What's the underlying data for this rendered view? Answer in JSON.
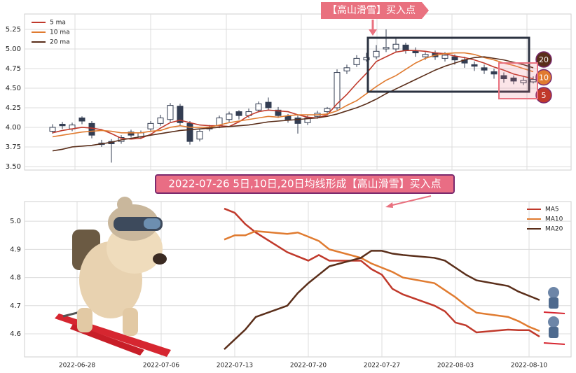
{
  "chart_data": [
    {
      "type": "candlestick",
      "open": [
        3.95,
        4.04,
        3.98,
        4.12,
        4.05,
        3.78,
        3.82,
        3.82,
        3.94,
        3.88,
        3.98,
        4.05,
        4.1,
        4.27,
        4.05,
        3.85,
        4.0,
        4.02,
        4.1,
        4.2,
        4.15,
        4.22,
        4.32,
        4.22,
        4.14,
        4.12,
        4.06,
        4.14,
        4.2,
        4.25,
        4.72,
        4.8,
        4.86,
        4.9,
        5.0,
        5.0,
        5.05,
        4.97,
        4.9,
        4.95,
        4.88,
        4.9,
        4.86,
        4.8,
        4.76,
        4.71,
        4.66,
        4.63,
        4.57,
        4.58
      ],
      "high": [
        4.04,
        4.07,
        4.06,
        4.14,
        4.08,
        3.84,
        3.85,
        3.9,
        3.97,
        3.96,
        4.08,
        4.16,
        4.31,
        4.3,
        4.08,
        3.98,
        4.03,
        4.15,
        4.2,
        4.22,
        4.24,
        4.33,
        4.38,
        4.26,
        4.17,
        4.15,
        4.15,
        4.21,
        4.26,
        4.74,
        4.8,
        4.92,
        4.95,
        5.05,
        5.25,
        5.14,
        5.08,
        5.02,
        4.96,
        4.98,
        4.96,
        4.93,
        4.9,
        4.84,
        4.8,
        4.75,
        4.7,
        4.66,
        4.64,
        4.65
      ],
      "low": [
        3.92,
        3.98,
        3.95,
        4.04,
        3.86,
        3.75,
        3.55,
        3.79,
        3.87,
        3.85,
        3.95,
        4.02,
        4.07,
        4.02,
        3.78,
        3.82,
        3.95,
        3.99,
        4.07,
        4.1,
        4.12,
        4.19,
        4.22,
        4.12,
        4.06,
        3.92,
        4.03,
        4.11,
        4.17,
        4.22,
        4.68,
        4.77,
        4.84,
        4.87,
        4.96,
        4.96,
        4.94,
        4.9,
        4.86,
        4.86,
        4.84,
        4.8,
        4.76,
        4.72,
        4.68,
        4.62,
        4.57,
        4.55,
        4.54,
        4.56
      ],
      "close": [
        4.0,
        4.02,
        4.03,
        4.08,
        3.9,
        3.8,
        3.79,
        3.87,
        3.9,
        3.93,
        4.05,
        4.12,
        4.28,
        4.06,
        3.82,
        3.95,
        3.98,
        4.12,
        4.17,
        4.15,
        4.2,
        4.3,
        4.25,
        4.15,
        4.1,
        4.05,
        4.12,
        4.18,
        4.24,
        4.7,
        4.76,
        4.88,
        4.89,
        4.97,
        5.02,
        5.06,
        4.98,
        4.95,
        4.93,
        4.9,
        4.92,
        4.86,
        4.82,
        4.78,
        4.73,
        4.68,
        4.62,
        4.59,
        4.6,
        4.61
      ],
      "series": [
        {
          "name": "5 ma",
          "color": "#c0392b",
          "values": [
            3.93,
            3.96,
            3.98,
            4.0,
            3.99,
            3.97,
            3.92,
            3.86,
            3.85,
            3.86,
            3.91,
            3.99,
            4.06,
            4.09,
            4.06,
            4.03,
            4.02,
            4.02,
            4.01,
            4.07,
            4.15,
            4.2,
            4.22,
            4.21,
            4.2,
            4.16,
            4.13,
            4.12,
            4.16,
            4.3,
            4.42,
            4.56,
            4.69,
            4.84,
            4.9,
            4.96,
            4.98,
            4.98,
            4.97,
            4.95,
            4.94,
            4.91,
            4.89,
            4.86,
            4.82,
            4.77,
            4.73,
            4.68,
            4.65,
            4.62
          ]
        },
        {
          "name": "10 ma",
          "color": "#e07b30",
          "values": [
            3.88,
            3.9,
            3.92,
            3.94,
            3.95,
            3.96,
            3.95,
            3.93,
            3.93,
            3.93,
            3.95,
            3.96,
            4.0,
            4.02,
            4.0,
            4.0,
            4.0,
            4.03,
            4.06,
            4.08,
            4.1,
            4.12,
            4.14,
            4.13,
            4.15,
            4.16,
            4.16,
            4.16,
            4.17,
            4.21,
            4.28,
            4.34,
            4.43,
            4.52,
            4.6,
            4.66,
            4.74,
            4.82,
            4.88,
            4.92,
            4.94,
            4.95,
            4.95,
            4.93,
            4.89,
            4.86,
            4.82,
            4.79,
            4.75,
            4.71
          ]
        },
        {
          "name": "20 ma",
          "color": "#5a2e1a",
          "values": [
            3.7,
            3.72,
            3.75,
            3.76,
            3.77,
            3.79,
            3.81,
            3.84,
            3.86,
            3.88,
            3.9,
            3.92,
            3.94,
            3.96,
            3.97,
            3.98,
            3.99,
            4.0,
            4.01,
            4.02,
            4.03,
            4.05,
            4.07,
            4.08,
            4.09,
            4.1,
            4.11,
            4.12,
            4.14,
            4.17,
            4.21,
            4.25,
            4.3,
            4.36,
            4.43,
            4.49,
            4.55,
            4.61,
            4.67,
            4.73,
            4.78,
            4.82,
            4.86,
            4.89,
            4.9,
            4.88,
            4.86,
            4.83,
            4.8,
            4.76
          ]
        }
      ],
      "up_color": "#ffffff",
      "down_color": "#333d52",
      "ylim": [
        3.455,
        5.446
      ],
      "yticks": [
        {
          "value": 3.5,
          "label": "3.50"
        },
        3.75,
        {
          "value": 4,
          "label": "4.00"
        },
        4.25,
        {
          "value": 4.5,
          "label": "4.50"
        },
        4.75,
        {
          "value": 5,
          "label": "5.00"
        },
        5.25
      ],
      "grid": true,
      "legend": "upper left",
      "banner": "【高山滑雪】买入点",
      "badges": [
        {
          "text": "20",
          "color": "#5a2e1a"
        },
        {
          "text": "10",
          "color": "#e07b30"
        },
        {
          "text": "5",
          "color": "#c0392b"
        }
      ]
    },
    {
      "type": "line",
      "x": [
        "2022-07-12",
        "2022-07-13",
        "2022-07-14",
        "2022-07-15",
        "2022-07-18",
        "2022-07-19",
        "2022-07-20",
        "2022-07-21",
        "2022-07-22",
        "2022-07-25",
        "2022-07-26",
        "2022-07-27",
        "2022-07-28",
        "2022-07-29",
        "2022-08-01",
        "2022-08-02",
        "2022-08-03",
        "2022-08-04",
        "2022-08-05",
        "2022-08-08",
        "2022-08-09",
        "2022-08-10",
        "2022-08-11"
      ],
      "series": [
        {
          "name": "MA5",
          "color": "#c0392b",
          "values": [
            5.045,
            5.03,
            4.99,
            4.96,
            4.89,
            4.875,
            4.86,
            4.88,
            4.86,
            4.86,
            4.83,
            4.81,
            4.76,
            4.74,
            4.7,
            4.68,
            4.64,
            4.63,
            4.605,
            4.615,
            4.613,
            4.613,
            4.59
          ]
        },
        {
          "name": "MA10",
          "color": "#e07b30",
          "values": [
            4.935,
            4.95,
            4.95,
            4.965,
            4.955,
            4.96,
            4.945,
            4.93,
            4.9,
            4.87,
            4.85,
            4.835,
            4.82,
            4.8,
            4.78,
            4.755,
            4.73,
            4.7,
            4.675,
            4.66,
            4.645,
            4.625,
            4.61
          ]
        },
        {
          "name": "MA20",
          "color": "#5a2e1a",
          "values": [
            4.545,
            4.58,
            4.615,
            4.66,
            4.7,
            4.745,
            4.78,
            4.81,
            4.84,
            4.87,
            4.895,
            4.895,
            4.885,
            4.88,
            4.87,
            4.86,
            4.835,
            4.81,
            4.79,
            4.77,
            4.75,
            4.735,
            4.72
          ]
        }
      ],
      "xlim": [
        "2022-06-23",
        "2022-08-14"
      ],
      "xticks": [
        "2022-06-28",
        "2022-07-06",
        "2022-07-13",
        "2022-07-20",
        "2022-07-27",
        "2022-08-03",
        "2022-08-10"
      ],
      "ylim": [
        4.518,
        5.07
      ],
      "yticks": [
        4.6,
        4.7,
        4.8,
        4.9,
        {
          "value": 5,
          "label": "5.0"
        }
      ],
      "grid": true,
      "legend": "upper right",
      "banner": "2022-07-26 5日,10日,20日均线形成【高山滑雪】买入点"
    }
  ]
}
